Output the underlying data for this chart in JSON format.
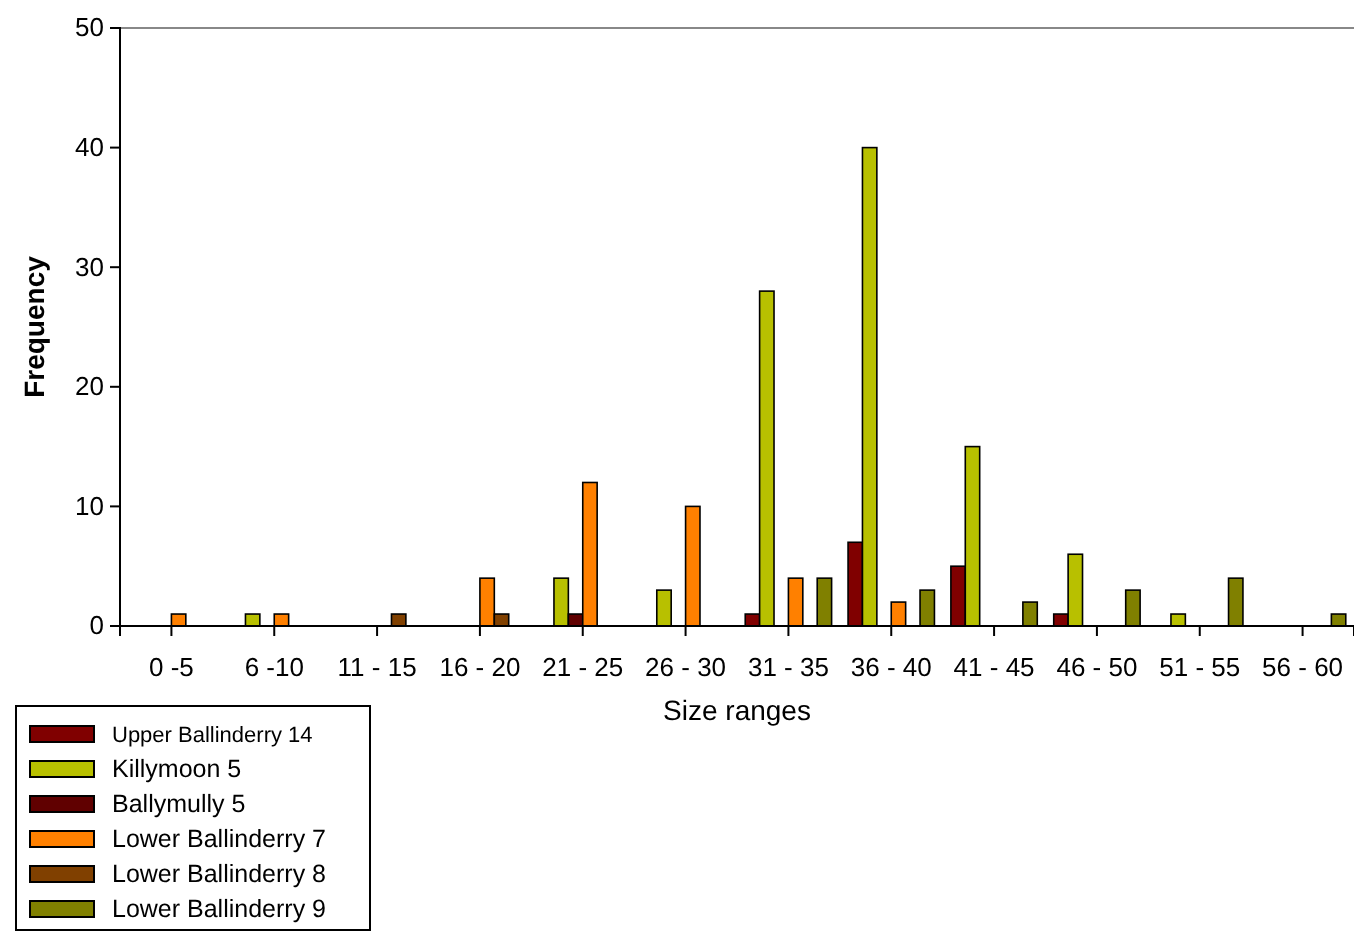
{
  "chart_data": {
    "type": "bar",
    "xlabel": "Size ranges",
    "ylabel": "Frequency",
    "categories": [
      "0 -5",
      "6 -10",
      "11 - 15",
      "16 - 20",
      "21 - 25",
      "26 - 30",
      "31 - 35",
      "36 - 40",
      "41 - 45",
      "46 - 50",
      "51 - 55",
      "56 - 60"
    ],
    "series": [
      {
        "name": "Upper Ballinderry 14",
        "color": "#800000",
        "values": [
          0,
          0,
          0,
          0,
          0,
          0,
          1,
          7,
          5,
          1,
          0,
          0
        ]
      },
      {
        "name": "Killymoon 5",
        "color": "#b8c000",
        "values": [
          0,
          1,
          0,
          0,
          4,
          3,
          28,
          40,
          15,
          6,
          1,
          0
        ]
      },
      {
        "name": "Ballymully 5",
        "color": "#600000",
        "values": [
          0,
          0,
          0,
          0,
          1,
          0,
          0,
          0,
          0,
          0,
          0,
          0
        ]
      },
      {
        "name": "Lower Ballinderry 7",
        "color": "#ff8000",
        "values": [
          1,
          1,
          0,
          4,
          12,
          10,
          4,
          2,
          0,
          0,
          0,
          0
        ]
      },
      {
        "name": "Lower Ballinderry 8",
        "color": "#804000",
        "values": [
          0,
          0,
          1,
          1,
          0,
          0,
          0,
          0,
          0,
          0,
          0,
          0
        ]
      },
      {
        "name": "Lower Ballinderry 9",
        "color": "#808000",
        "values": [
          0,
          0,
          0,
          0,
          0,
          0,
          4,
          3,
          2,
          3,
          4,
          1
        ]
      }
    ],
    "ylim": [
      0,
      50
    ],
    "yticks": [
      0,
      10,
      20,
      30,
      40,
      50
    ],
    "grid": false,
    "legend": "bottom left"
  }
}
